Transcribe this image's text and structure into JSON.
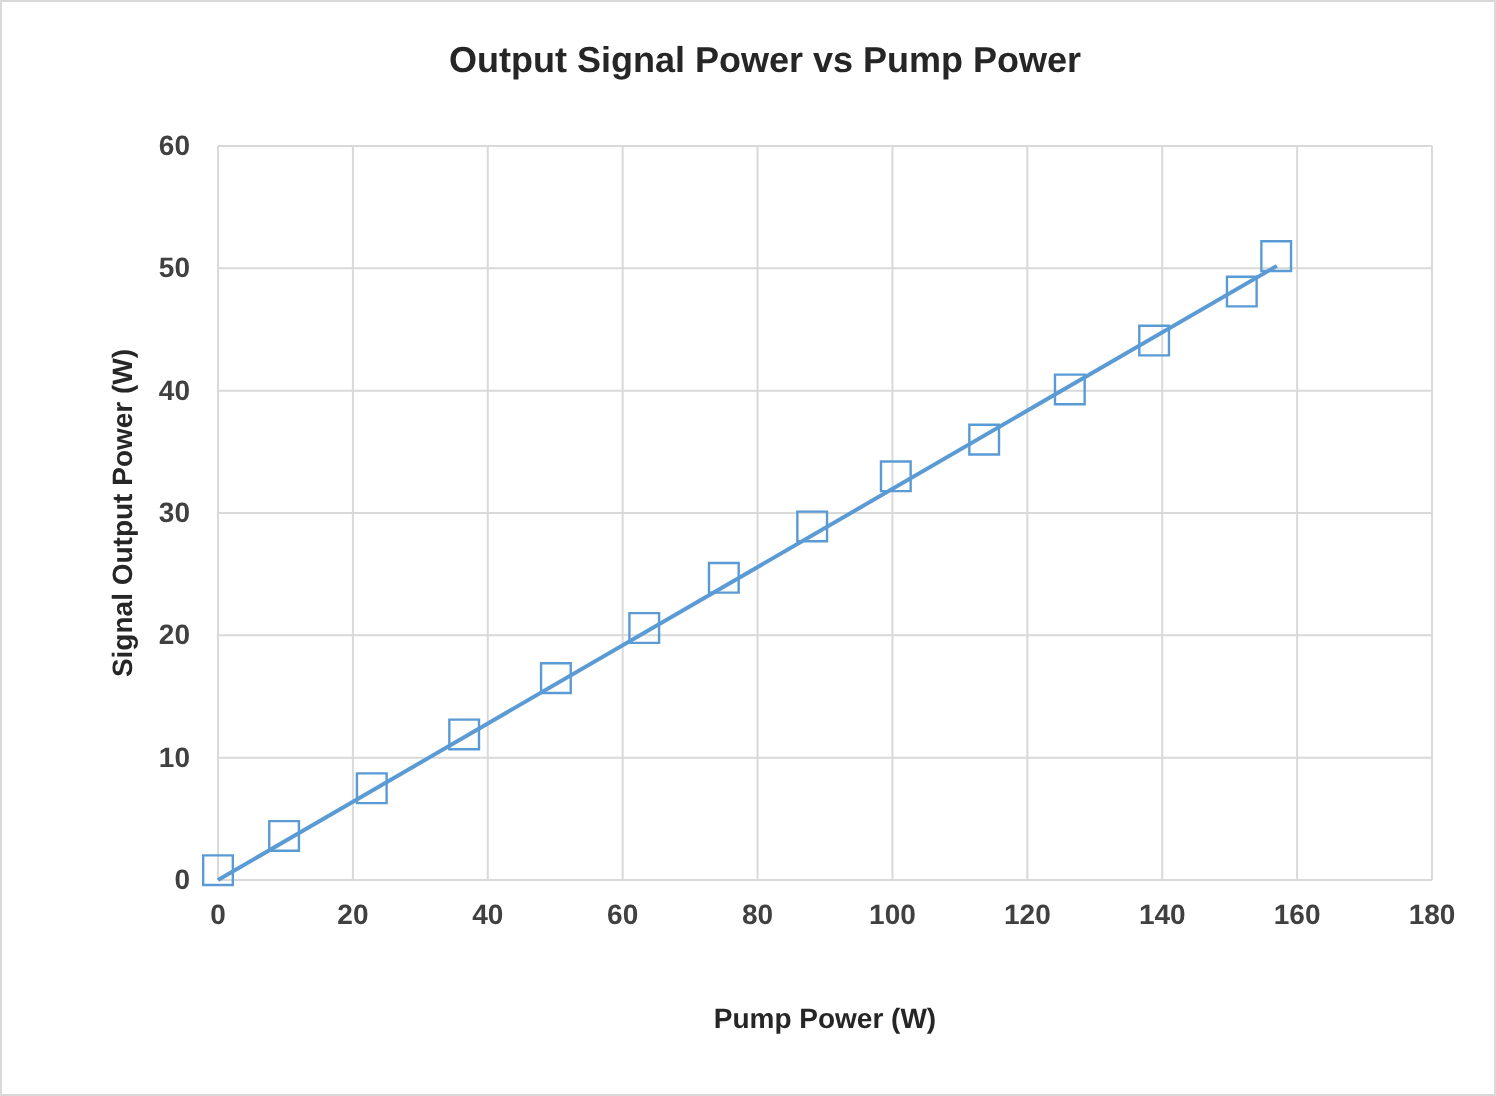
{
  "chart_data": {
    "type": "scatter",
    "title": "Output Signal Power vs Pump Power",
    "xlabel": "Pump Power (W)",
    "ylabel": "Signal Output Power (W)",
    "xlim": [
      0,
      180
    ],
    "xticks": [
      0,
      20,
      40,
      60,
      80,
      100,
      120,
      140,
      160,
      180
    ],
    "ylim": [
      0,
      60
    ],
    "yticks": [
      0,
      10,
      20,
      30,
      40,
      50,
      60
    ],
    "grid": true,
    "series": [
      {
        "marker": "square",
        "color": "#5b9bd5",
        "x": [
          0,
          9.8,
          22.8,
          36.5,
          50.1,
          63.2,
          75,
          88.1,
          100.5,
          113.6,
          126.3,
          138.8,
          151.8,
          156.9
        ],
        "values": [
          0.8,
          3.6,
          7.5,
          11.9,
          16.5,
          20.6,
          24.7,
          28.9,
          33.0,
          36.0,
          40.1,
          44.1,
          48.1,
          51.0
        ]
      },
      {
        "type": "line",
        "marker": "none",
        "line_style": "solid",
        "color": "#5b9bd5",
        "x": [
          0,
          157
        ],
        "values": [
          0,
          50.2
        ]
      }
    ]
  }
}
